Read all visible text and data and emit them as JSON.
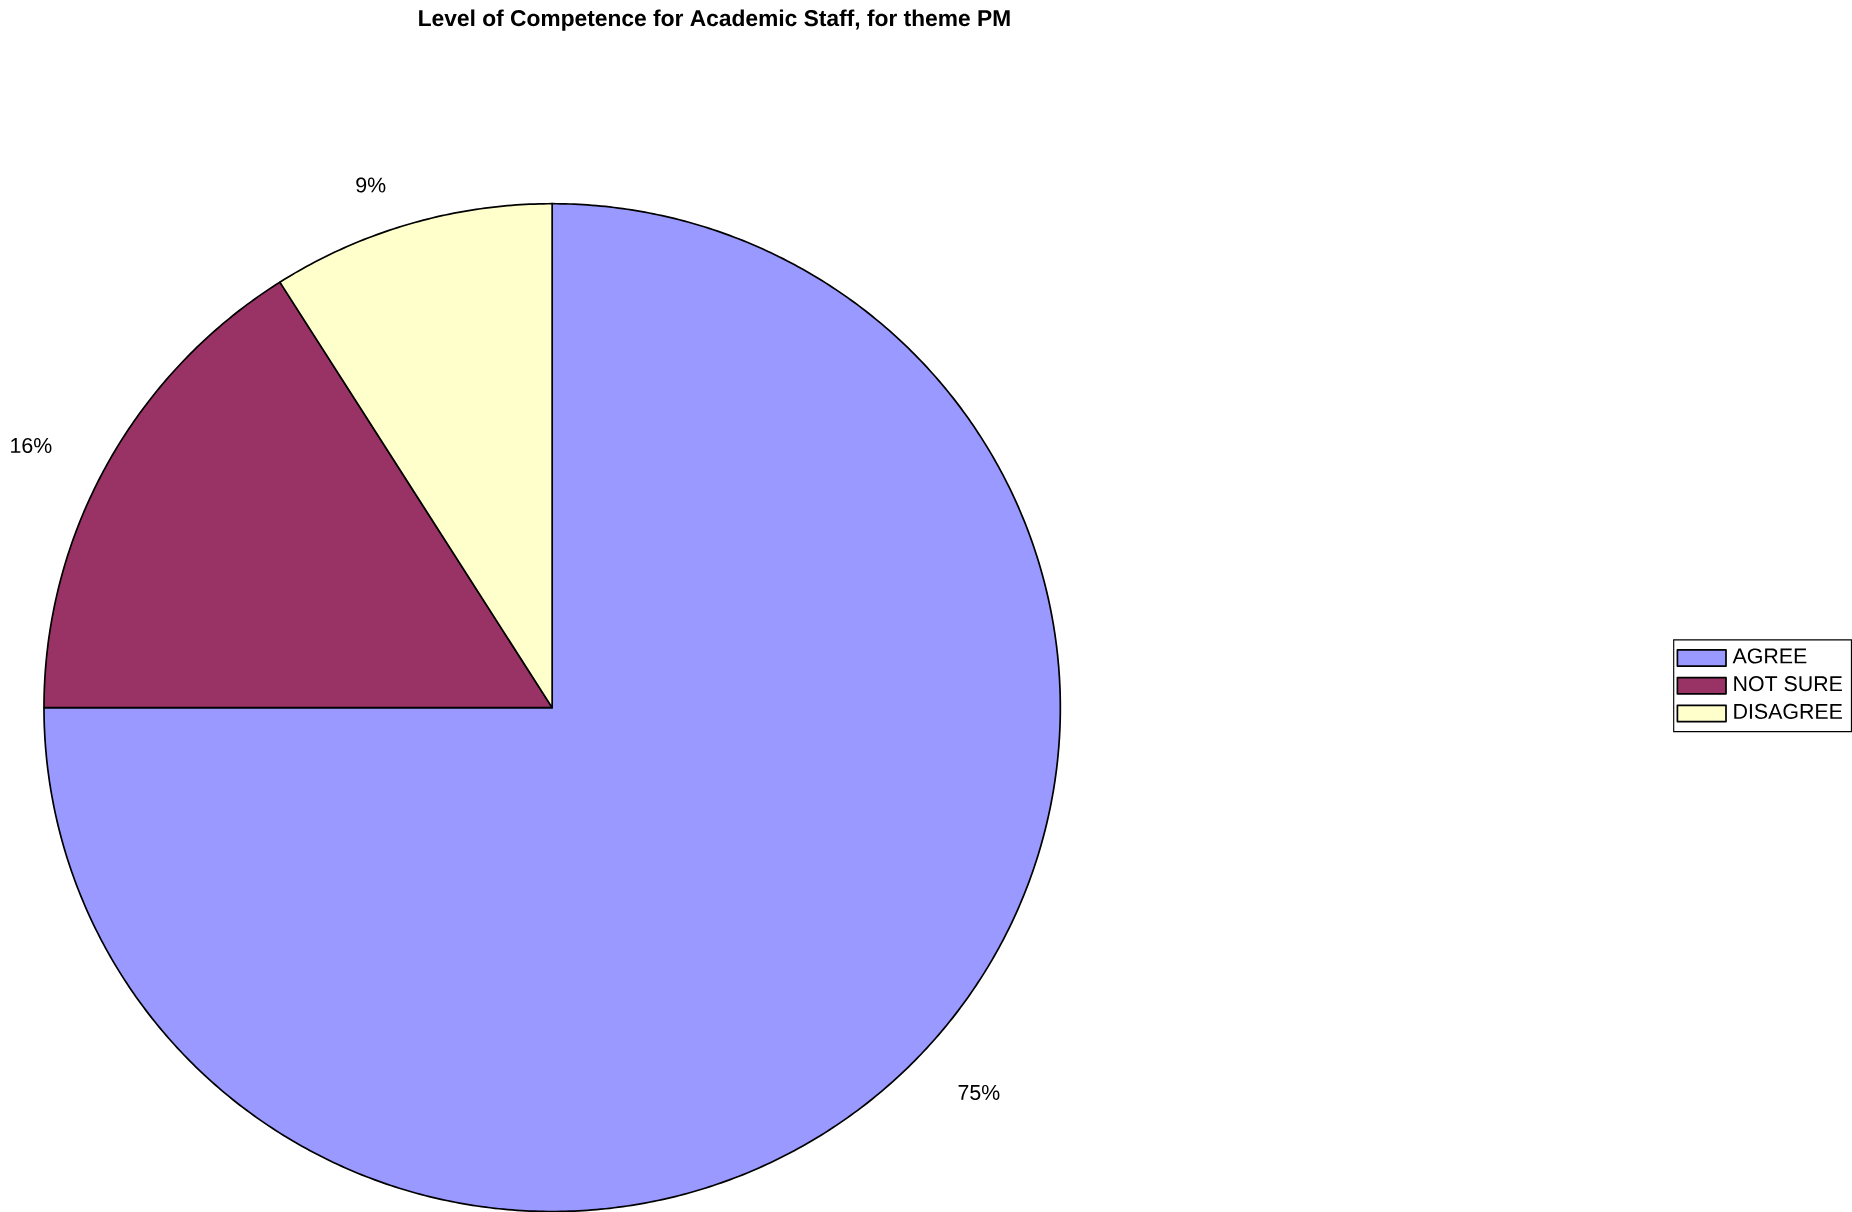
{
  "chart_data": {
    "type": "pie",
    "title": "Level of Competence for Academic Staff, for theme PM",
    "categories": [
      "AGREE",
      "NOT SURE",
      "DISAGREE"
    ],
    "values": [
      75,
      16,
      9
    ],
    "value_labels": [
      "75%",
      "16%",
      "9%"
    ],
    "colors": [
      "#9999ff",
      "#993366",
      "#ffffcc"
    ],
    "legend": "right"
  }
}
